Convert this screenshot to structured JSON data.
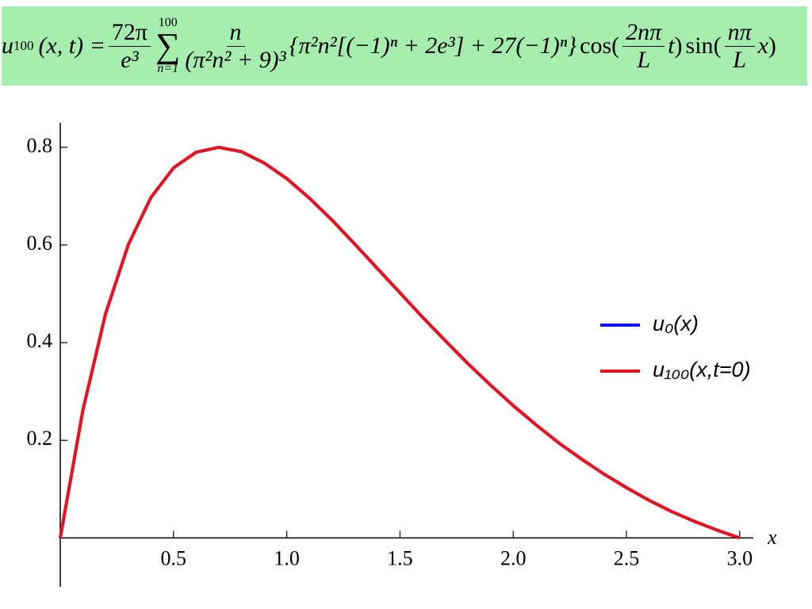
{
  "header": {
    "lhs": "u",
    "lhs_sub": "100",
    "lhs_args": "(x, t) =",
    "coef_num": "72π",
    "coef_den": "e³",
    "sum_top": "100",
    "sum_sign": "∑",
    "sum_bottom": "n=1",
    "frac_num": "n",
    "frac_den": "(π²n² + 9)³",
    "brace": "{π²n²[(−1)ⁿ + 2e³] + 27(−1)ⁿ}",
    "cos": "cos",
    "cos_arg_num": "2nπ",
    "cos_arg_den": "L",
    "cos_t": "t",
    "sin": "sin",
    "sin_arg_num": "nπ",
    "sin_arg_den": "L",
    "sin_x": "x"
  },
  "chart_data": {
    "type": "line",
    "x_label": "x",
    "x": [
      0,
      0.1,
      0.2,
      0.3,
      0.4,
      0.5,
      0.6,
      0.7,
      0.8,
      0.9,
      1.0,
      1.1,
      1.2,
      1.3,
      1.4,
      1.5,
      1.6,
      1.7,
      1.8,
      1.9,
      2.0,
      2.1,
      2.2,
      2.3,
      2.4,
      2.5,
      2.6,
      2.7,
      2.8,
      2.9,
      3.0
    ],
    "series": [
      {
        "name": "u₀(x)",
        "color": "#1010ff",
        "values": [
          0,
          0.262,
          0.459,
          0.6,
          0.697,
          0.758,
          0.79,
          0.8,
          0.791,
          0.768,
          0.736,
          0.696,
          0.651,
          0.602,
          0.552,
          0.502,
          0.452,
          0.404,
          0.357,
          0.313,
          0.271,
          0.232,
          0.195,
          0.162,
          0.131,
          0.103,
          0.077,
          0.054,
          0.034,
          0.016,
          0
        ]
      },
      {
        "name": "u₁₀₀(x,t=0)",
        "color": "#e8141c",
        "values": [
          0,
          0.262,
          0.459,
          0.6,
          0.697,
          0.758,
          0.79,
          0.8,
          0.791,
          0.768,
          0.736,
          0.696,
          0.651,
          0.602,
          0.552,
          0.502,
          0.452,
          0.404,
          0.357,
          0.313,
          0.271,
          0.232,
          0.195,
          0.162,
          0.131,
          0.103,
          0.077,
          0.054,
          0.034,
          0.016,
          0
        ]
      }
    ],
    "xlim": [
      0,
      3.06
    ],
    "ylim": [
      -0.1,
      0.85
    ],
    "xticks": [
      0.5,
      {
        "value": 1,
        "label": "1.0"
      },
      1.5,
      {
        "value": 2,
        "label": "2.0"
      },
      2.5,
      {
        "value": 3,
        "label": "3.0"
      }
    ],
    "yticks": [
      0.2,
      0.4,
      0.6,
      0.8
    ],
    "legend": "right"
  }
}
